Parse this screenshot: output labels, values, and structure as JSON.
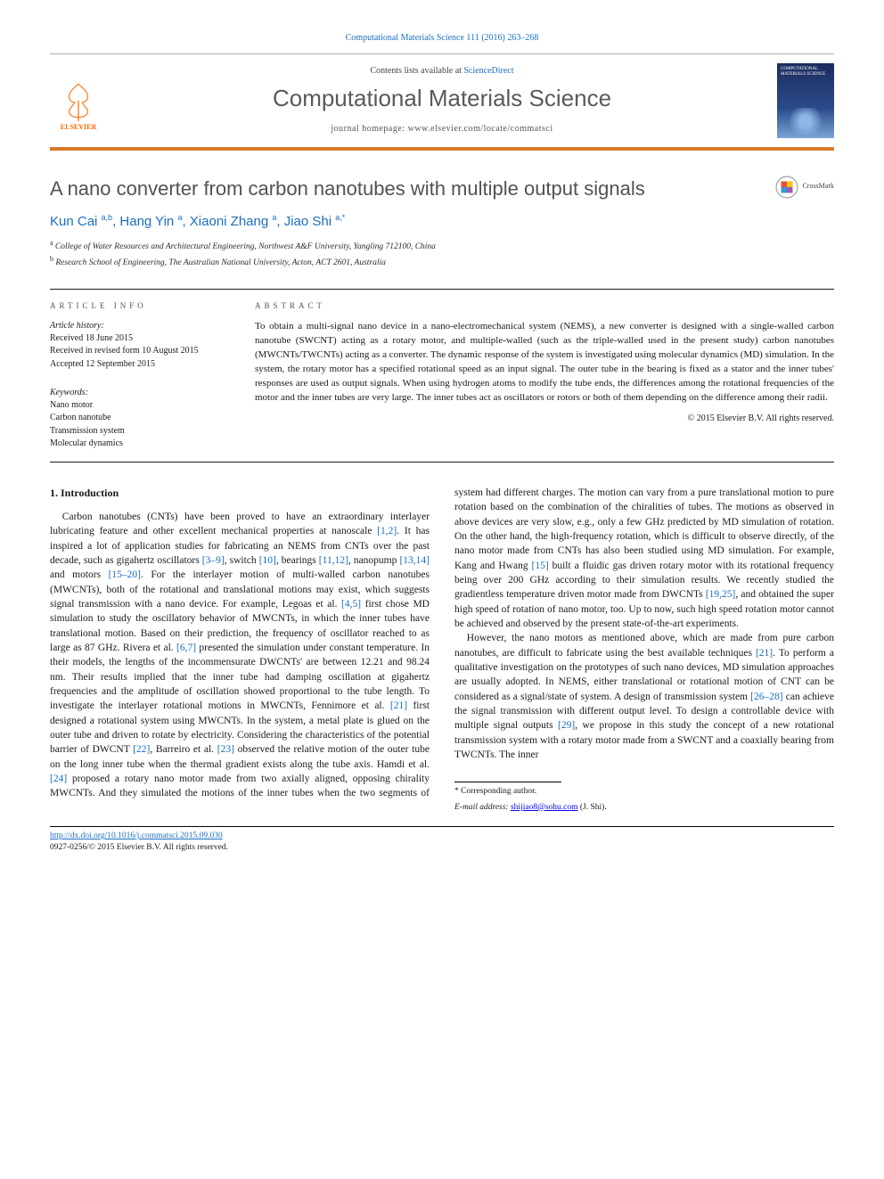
{
  "top_citation": "Computational Materials Science 111 (2016) 263–268",
  "masthead": {
    "contents_prefix": "Contents lists available at ",
    "contents_link": "ScienceDirect",
    "journal_name": "Computational Materials Science",
    "homepage_label": "journal homepage: www.elsevier.com/locate/commatsci",
    "publisher": "ELSEVIER",
    "cover_top": "COMPUTATIONAL MATERIALS SCIENCE"
  },
  "article": {
    "title": "A nano converter from carbon nanotubes with multiple output signals",
    "crossmark_label": "CrossMark",
    "authors_html": "Kun Cai <sup>a,b</sup>, Hang Yin <sup>a</sup>, Xiaoni Zhang <sup>a</sup>, Jiao Shi <sup>a,*</sup>",
    "affiliations": [
      "a College of Water Resources and Architectural Engineering, Northwest A&F University, Yangling 712100, China",
      "b Research School of Engineering, The Australian National University, Acton, ACT 2601, Australia"
    ]
  },
  "info": {
    "left_heading": "ARTICLE INFO",
    "right_heading": "ABSTRACT",
    "history_label": "Article history:",
    "history": [
      "Received 18 June 2015",
      "Received in revised form 10 August 2015",
      "Accepted 12 September 2015"
    ],
    "keywords_label": "Keywords:",
    "keywords": [
      "Nano motor",
      "Carbon nanotube",
      "Transmission system",
      "Molecular dynamics"
    ],
    "abstract": "To obtain a multi-signal nano device in a nano-electromechanical system (NEMS), a new converter is designed with a single-walled carbon nanotube (SWCNT) acting as a rotary motor, and multiple-walled (such as the triple-walled used in the present study) carbon nanotubes (MWCNTs/TWCNTs) acting as a converter. The dynamic response of the system is investigated using molecular dynamics (MD) simulation. In the system, the rotary motor has a specified rotational speed as an input signal. The outer tube in the bearing is fixed as a stator and the inner tubes' responses are used as output signals. When using hydrogen atoms to modify the tube ends, the differences among the rotational frequencies of the motor and the inner tubes are very large. The inner tubes act as oscillators or rotors or both of them depending on the difference among their radii.",
    "copyright": "© 2015 Elsevier B.V. All rights reserved."
  },
  "section_heading": "1. Introduction",
  "paragraphs": {
    "p1a": "Carbon nanotubes (CNTs) have been proved to have an extraordinary interlayer lubricating feature and other excellent mechanical properties at nanoscale ",
    "r1": "[1,2]",
    "p1b": ". It has inspired a lot of application studies for fabricating an NEMS from CNTs over the past decade, such as gigahertz oscillators ",
    "r2": "[3–9]",
    "p1c": ", switch ",
    "r3": "[10]",
    "p1d": ", bearings ",
    "r4": "[11,12]",
    "p1e": ", nanopump ",
    "r5": "[13,14]",
    "p1f": " and motors ",
    "r6": "[15–20]",
    "p1g": ". For the interlayer motion of multi-walled carbon nanotubes (MWCNTs), both of the rotational and translational motions may exist, which suggests signal transmission with a nano device. For example, Legoas et al. ",
    "r7": "[4,5]",
    "p1h": " first chose MD simulation to study the oscillatory behavior of MWCNTs, in which the inner tubes have translational motion. Based on their prediction, the frequency of oscillator reached to as large as 87 GHz. Rivera et al. ",
    "r8": "[6,7]",
    "p1i": " presented the simulation under constant temperature. In their models, the lengths of the incommensurate DWCNTs' are between 12.21 and 98.24 nm. Their results implied that the inner tube had damping oscillation at gigahertz frequencies and the amplitude of oscillation showed proportional to the tube length. To investigate the interlayer rotational motions in MWCNTs, Fennimore et al. ",
    "r9": "[21]",
    "p1j": " first designed a rotational system using MWCNTs. In the system, a metal plate is glued on the outer tube and driven to rotate by electricity. Considering the characteristics of the potential barrier of DWCNT ",
    "r10": "[22]",
    "p1k": ", Barreiro et al. ",
    "r11": "[23]",
    "p1l": " observed the relative motion of the outer tube on the long inner tube when the thermal gradient exists along the tube ",
    "p2a": "axis. Hamdi et al. ",
    "r12": "[24]",
    "p2b": " proposed a rotary nano motor made from two axially aligned, opposing chirality MWCNTs. And they simulated the motions of the inner tubes when the two segments of system had different charges. The motion can vary from a pure translational motion to pure rotation based on the combination of the chiralities of tubes. The motions as observed in above devices are very slow, e.g., only a few GHz predicted by MD simulation of rotation. On the other hand, the high-frequency rotation, which is difficult to observe directly, of the nano motor made from CNTs has also been studied using MD simulation. For example, Kang and Hwang ",
    "r13": "[15]",
    "p2c": " built a fluidic gas driven rotary motor with its rotational frequency being over 200 GHz according to their simulation results. We recently studied the gradientless temperature driven motor made from DWCNTs ",
    "r14": "[19,25]",
    "p2d": ", and obtained the super high speed of rotation of nano motor, too. Up to now, such high speed rotation motor cannot be achieved and observed by the present state-of-the-art experiments.",
    "p3a": "However, the nano motors as mentioned above, which are made from pure carbon nanotubes, are difficult to fabricate using the best available techniques ",
    "r15": "[21]",
    "p3b": ". To perform a qualitative investigation on the prototypes of such nano devices, MD simulation approaches are usually adopted. In NEMS, either translational or rotational motion of CNT can be considered as a signal/state of system. A design of transmission system ",
    "r16": "[26–28]",
    "p3c": " can achieve the signal transmission with different output level. To design a controllable device with multiple signal outputs ",
    "r17": "[29]",
    "p3d": ", we propose in this study the concept of a new rotational transmission system with a rotary motor made from a SWCNT and a coaxially bearing from TWCNTs. The inner"
  },
  "footnote": {
    "corr": "* Corresponding author.",
    "email_label": "E-mail address: ",
    "email": "shijiao8@sohu.com",
    "email_who": " (J. Shi)."
  },
  "footer": {
    "doi": "http://dx.doi.org/10.1016/j.commatsci.2015.09.030",
    "issn": "0927-0256/© 2015 Elsevier B.V. All rights reserved."
  },
  "colors": {
    "link": "#1a6fbf",
    "rule": "#d87a2a",
    "title_gray": "#525252"
  }
}
